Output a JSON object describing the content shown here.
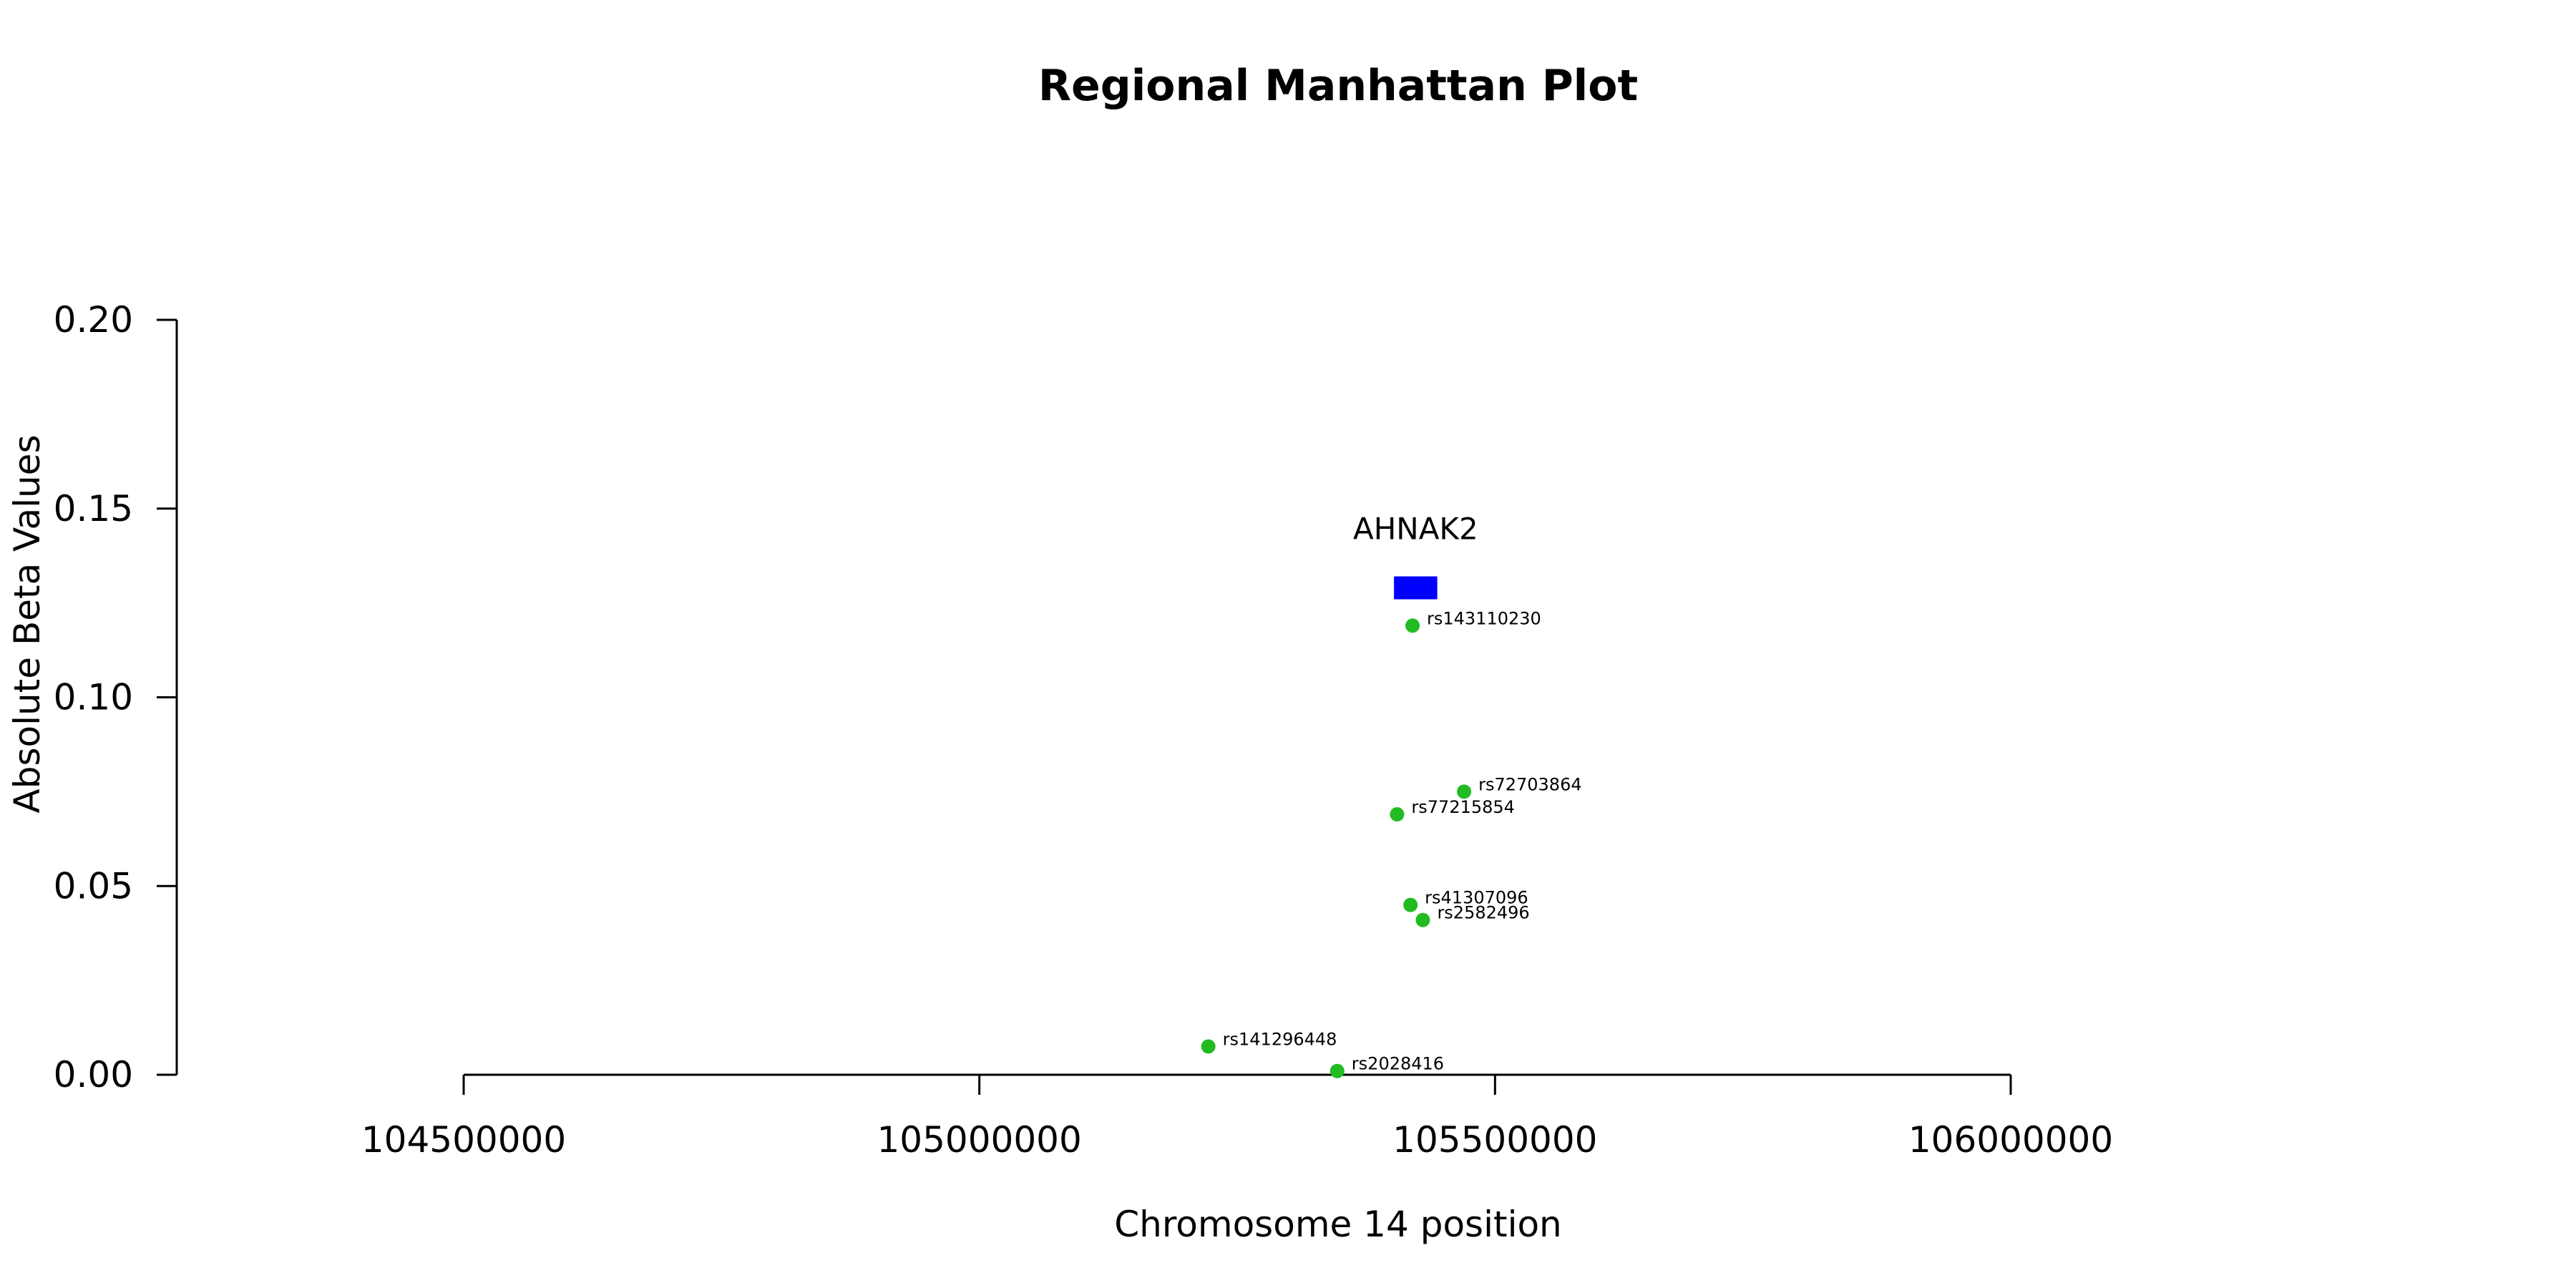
{
  "chart_data": {
    "type": "scatter",
    "title": "Regional Manhattan Plot",
    "xlabel": "Chromosome 14 position",
    "ylabel": "Absolute Beta Values",
    "xlim": [
      104500000,
      106000000
    ],
    "ylim": [
      0,
      0.2
    ],
    "x_ticks": [
      104500000,
      105000000,
      105500000,
      106000000
    ],
    "x_tick_labels": [
      "104500000",
      "105000000",
      "105500000",
      "106000000"
    ],
    "y_ticks": [
      0,
      0.05,
      0.1,
      0.15,
      0.2
    ],
    "y_tick_labels": [
      "0.00",
      "0.05",
      "0.10",
      "0.15",
      "0.20"
    ],
    "grid": false,
    "point_color": "#22bb22",
    "points": [
      {
        "label": "rs143110230",
        "x": 105420000,
        "y": 0.119
      },
      {
        "label": "rs72703864",
        "x": 105470000,
        "y": 0.075
      },
      {
        "label": "rs77215854",
        "x": 105405000,
        "y": 0.069
      },
      {
        "label": "rs41307096",
        "x": 105418000,
        "y": 0.045
      },
      {
        "label": "rs2582496",
        "x": 105430000,
        "y": 0.041
      },
      {
        "label": "rs141296448",
        "x": 105222000,
        "y": 0.0075
      },
      {
        "label": "rs2028416",
        "x": 105347000,
        "y": 0.001
      }
    ],
    "gene": {
      "name": "AHNAK2",
      "start": 105402000,
      "end": 105444000,
      "y": 0.129,
      "color": "#0000ff"
    }
  }
}
